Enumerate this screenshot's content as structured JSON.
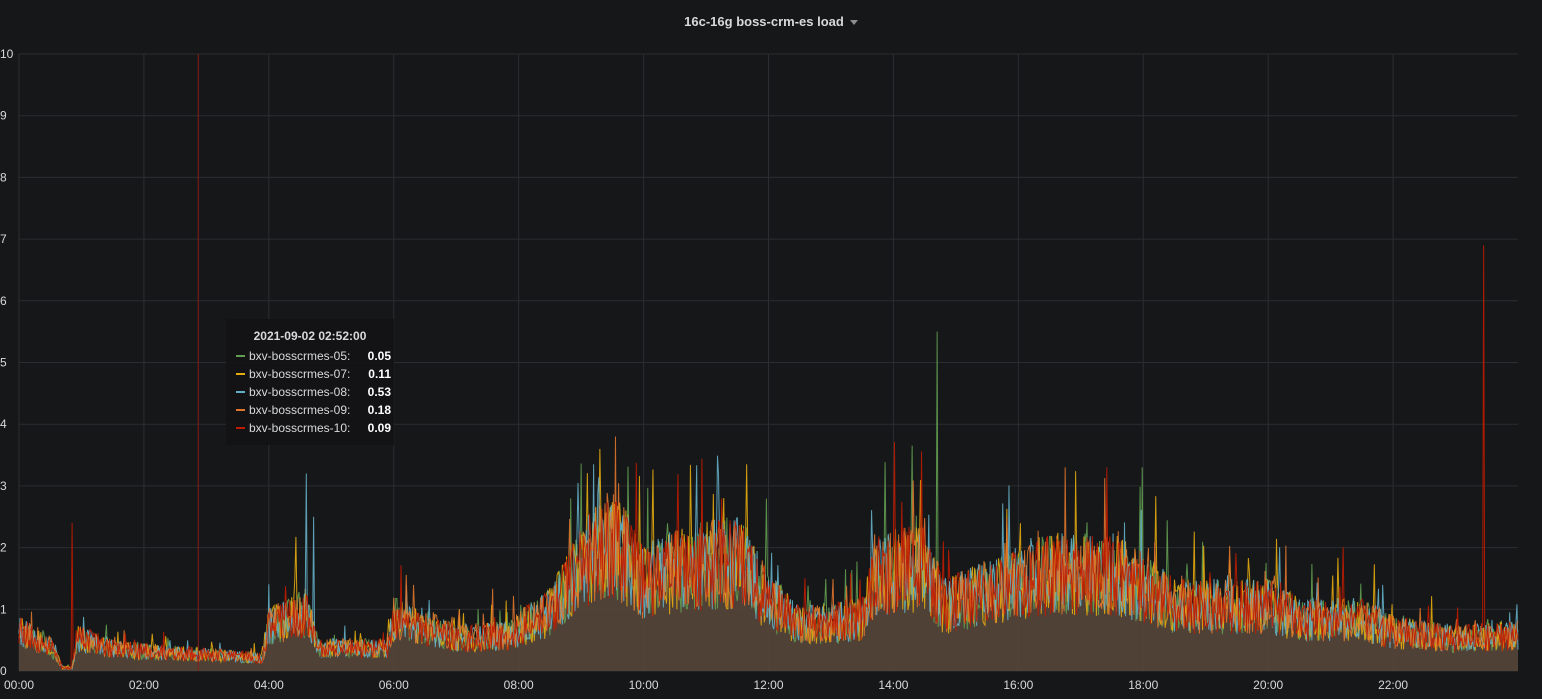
{
  "panel": {
    "title": "16c-16g boss-crm-es load"
  },
  "tooltip": {
    "time": "2021-09-02 02:52:00",
    "rows": [
      {
        "name": "bxv-bosscrmes-05:",
        "value": "0.05",
        "color": "#629e51"
      },
      {
        "name": "bxv-bosscrmes-07:",
        "value": "0.11",
        "color": "#e5ac0e"
      },
      {
        "name": "bxv-bosscrmes-08:",
        "value": "0.53",
        "color": "#64b0c8"
      },
      {
        "name": "bxv-bosscrmes-09:",
        "value": "0.18",
        "color": "#e0752d"
      },
      {
        "name": "bxv-bosscrmes-10:",
        "value": "0.09",
        "color": "#bf1b00"
      }
    ]
  },
  "chart_data": {
    "type": "line",
    "title": "16c-16g boss-crm-es load",
    "xlabel": "",
    "ylabel": "",
    "ylim": [
      0,
      10
    ],
    "xlim_hours": [
      0,
      24
    ],
    "x_ticks": [
      "00:00",
      "02:00",
      "04:00",
      "06:00",
      "08:00",
      "10:00",
      "12:00",
      "14:00",
      "16:00",
      "18:00",
      "20:00",
      "22:00"
    ],
    "y_ticks": [
      "0",
      "1",
      "2",
      "3",
      "4",
      "5",
      "6",
      "7",
      "8",
      "9",
      "10"
    ],
    "grid": true,
    "fill_color": "#56463a",
    "crosshair_hour": 2.87,
    "crosshair_color": "#8b1d17",
    "baseline": [
      [
        0,
        0.6
      ],
      [
        0.5,
        0.4
      ],
      [
        0.7,
        0.05
      ],
      [
        0.85,
        0.05
      ],
      [
        0.95,
        0.5
      ],
      [
        1.5,
        0.35
      ],
      [
        2,
        0.3
      ],
      [
        3,
        0.25
      ],
      [
        3.9,
        0.2
      ],
      [
        4.0,
        0.7
      ],
      [
        4.6,
        0.9
      ],
      [
        4.8,
        0.35
      ],
      [
        5.9,
        0.35
      ],
      [
        6.0,
        0.8
      ],
      [
        6.6,
        0.65
      ],
      [
        7.0,
        0.5
      ],
      [
        7.8,
        0.55
      ],
      [
        8.5,
        0.9
      ],
      [
        9.0,
        1.6
      ],
      [
        9.5,
        2.0
      ],
      [
        10.0,
        1.4
      ],
      [
        10.8,
        1.6
      ],
      [
        11.5,
        1.7
      ],
      [
        12.0,
        1.1
      ],
      [
        12.5,
        0.7
      ],
      [
        13.5,
        0.8
      ],
      [
        13.7,
        1.5
      ],
      [
        14.5,
        1.6
      ],
      [
        14.8,
        1.0
      ],
      [
        15.5,
        1.2
      ],
      [
        16.5,
        1.5
      ],
      [
        17.5,
        1.5
      ],
      [
        18.0,
        1.3
      ],
      [
        18.5,
        1.0
      ],
      [
        20.0,
        1.0
      ],
      [
        20.5,
        0.8
      ],
      [
        21.5,
        0.8
      ],
      [
        22.0,
        0.6
      ],
      [
        23.0,
        0.5
      ],
      [
        24.0,
        0.55
      ]
    ],
    "series": [
      {
        "name": "bxv-bosscrmes-05",
        "color": "#629e51",
        "spikes": [
          [
            14.7,
            5.5
          ],
          [
            17.99,
            3.3
          ]
        ]
      },
      {
        "name": "bxv-bosscrmes-07",
        "color": "#e5ac0e",
        "spikes": [
          [
            9.3,
            3.6
          ],
          [
            11.65,
            3.35
          ]
        ]
      },
      {
        "name": "bxv-bosscrmes-08",
        "color": "#64b0c8",
        "spikes": [
          [
            4.6,
            3.2
          ],
          [
            4.72,
            2.5
          ]
        ]
      },
      {
        "name": "bxv-bosscrmes-09",
        "color": "#e0752d",
        "spikes": [
          [
            9.55,
            3.8
          ],
          [
            16.75,
            3.3
          ]
        ]
      },
      {
        "name": "bxv-bosscrmes-10",
        "color": "#bf1b00",
        "spikes": [
          [
            0.85,
            2.4
          ],
          [
            23.45,
            6.9
          ]
        ]
      }
    ]
  }
}
